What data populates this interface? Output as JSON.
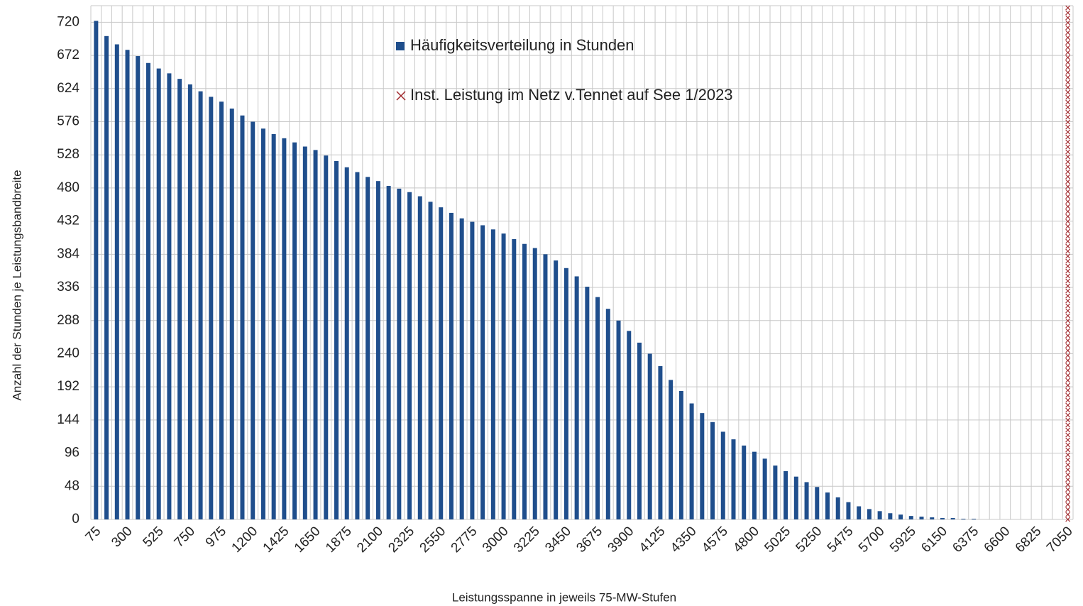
{
  "chart_data": {
    "type": "bar",
    "x_label": "Leistungsspanne in jeweils 75-MW-Stufen",
    "y_label": "Anzahl der Stunden je Leistungsbandbreite",
    "categories": [
      75,
      null,
      null,
      300,
      null,
      null,
      525,
      null,
      null,
      750,
      null,
      null,
      975,
      null,
      null,
      1200,
      null,
      null,
      1425,
      null,
      null,
      1650,
      null,
      null,
      1875,
      null,
      null,
      2100,
      null,
      null,
      2325,
      null,
      null,
      2550,
      null,
      null,
      2775,
      null,
      null,
      3000,
      null,
      null,
      3225,
      null,
      null,
      3450,
      null,
      null,
      3675,
      null,
      null,
      3900,
      null,
      null,
      4125,
      null,
      null,
      4350,
      null,
      null,
      4575,
      null,
      null,
      4800,
      null,
      null,
      5025,
      null,
      null,
      5250,
      null,
      null,
      5475,
      null,
      null,
      5700,
      null,
      null,
      5925,
      null,
      null,
      6150,
      null,
      null,
      6375,
      null,
      null,
      6600,
      null,
      null,
      6825,
      null,
      null,
      7050
    ],
    "series": [
      {
        "name": "Häufigkeitsverteilung in Stunden",
        "color": "#1f4e8c",
        "marker": "bar",
        "values": [
          722,
          700,
          688,
          680,
          671,
          661,
          653,
          646,
          638,
          630,
          620,
          612,
          605,
          595,
          585,
          576,
          566,
          558,
          552,
          546,
          540,
          535,
          527,
          519,
          510,
          503,
          496,
          490,
          483,
          479,
          474,
          468,
          460,
          452,
          444,
          436,
          431,
          426,
          420,
          414,
          406,
          399,
          393,
          384,
          375,
          364,
          352,
          337,
          322,
          305,
          288,
          273,
          256,
          240,
          222,
          202,
          186,
          168,
          154,
          141,
          127,
          116,
          107,
          98,
          88,
          78,
          70,
          62,
          54,
          47,
          39,
          32,
          25,
          19,
          15,
          12,
          9,
          7,
          5,
          4,
          3,
          2,
          2,
          1,
          1,
          0,
          0,
          0,
          0,
          0,
          0,
          0,
          0,
          0
        ]
      },
      {
        "name": "Inst. Leistung im Netz v.Tennet auf See 1/2023",
        "color": "#a0282c",
        "marker": "cross-line",
        "values": [
          null,
          null,
          null,
          null,
          null,
          null,
          null,
          null,
          null,
          null,
          null,
          null,
          null,
          null,
          null,
          null,
          null,
          null,
          null,
          null,
          null,
          null,
          null,
          null,
          null,
          null,
          null,
          null,
          null,
          null,
          null,
          null,
          null,
          null,
          null,
          null,
          null,
          null,
          null,
          null,
          null,
          null,
          null,
          null,
          null,
          null,
          null,
          null,
          null,
          null,
          null,
          null,
          null,
          null,
          null,
          null,
          null,
          null,
          null,
          null,
          null,
          null,
          null,
          null,
          null,
          null,
          null,
          null,
          null,
          null,
          null,
          null,
          null,
          null,
          null,
          null,
          null,
          null,
          null,
          null,
          null,
          null,
          null,
          null,
          null,
          null,
          null,
          null,
          null,
          null,
          null,
          null,
          null,
          744
        ]
      }
    ],
    "ylim": [
      0,
      744
    ],
    "yticks": [
      0,
      48,
      96,
      144,
      192,
      240,
      288,
      336,
      384,
      432,
      480,
      528,
      576,
      624,
      672,
      720
    ],
    "grid": true,
    "legend": "top-center"
  }
}
